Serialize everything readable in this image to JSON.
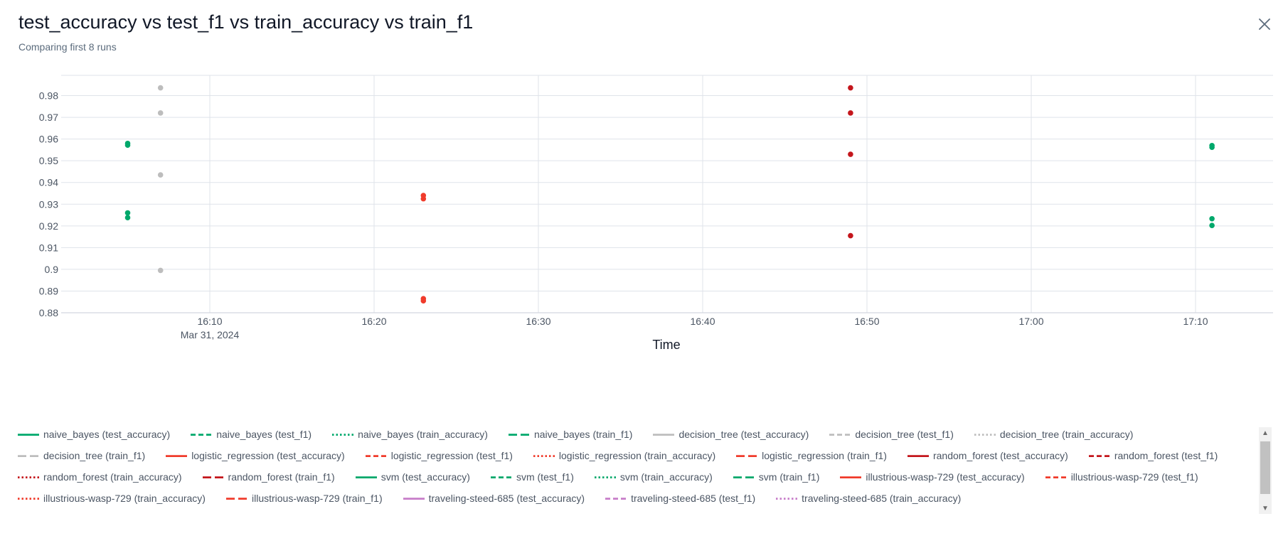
{
  "header": {
    "title": "test_accuracy vs test_f1 vs train_accuracy vs train_f1",
    "subtitle": "Comparing first 8 runs",
    "close_icon": "close-icon"
  },
  "chart_data": {
    "type": "scatter",
    "title": "",
    "xlabel": "Time",
    "ylabel": "",
    "x_date_label": "Mar 31, 2024",
    "x_ticks": [
      "16:10",
      "16:20",
      "16:30",
      "16:40",
      "16:50",
      "17:00",
      "17:10"
    ],
    "x_range": [
      "16:01",
      "17:15"
    ],
    "y_ticks": [
      "0.88",
      "0.89",
      "0.9",
      "0.91",
      "0.92",
      "0.93",
      "0.94",
      "0.95",
      "0.96",
      "0.97",
      "0.98"
    ],
    "ylim": [
      0.88,
      0.99
    ],
    "grid": true,
    "legend_position": "bottom",
    "series": [
      {
        "name": "naive_bayes (test_accuracy)",
        "color": "#00a86b",
        "dash": "solid",
        "points": [
          {
            "x": "16:05",
            "y": 0.926
          }
        ]
      },
      {
        "name": "naive_bayes (test_f1)",
        "color": "#00a86b",
        "dash": "dash",
        "points": [
          {
            "x": "16:05",
            "y": 0.9238
          }
        ]
      },
      {
        "name": "naive_bayes (train_accuracy)",
        "color": "#00a86b",
        "dash": "dot",
        "points": [
          {
            "x": "16:05",
            "y": 0.958
          }
        ]
      },
      {
        "name": "naive_bayes (train_f1)",
        "color": "#00a86b",
        "dash": "longdash",
        "points": [
          {
            "x": "16:05",
            "y": 0.9572
          }
        ]
      },
      {
        "name": "decision_tree (test_accuracy)",
        "color": "#bdbdbd",
        "dash": "solid",
        "points": [
          {
            "x": "16:07",
            "y": 0.9435
          }
        ]
      },
      {
        "name": "decision_tree (test_f1)",
        "color": "#bdbdbd",
        "dash": "dash",
        "points": [
          {
            "x": "16:07",
            "y": 0.8995
          }
        ]
      },
      {
        "name": "decision_tree (train_accuracy)",
        "color": "#bdbdbd",
        "dash": "dot",
        "points": [
          {
            "x": "16:07",
            "y": 0.9836
          }
        ]
      },
      {
        "name": "decision_tree (train_f1)",
        "color": "#bdbdbd",
        "dash": "longdash",
        "points": [
          {
            "x": "16:07",
            "y": 0.972
          }
        ]
      },
      {
        "name": "logistic_regression (test_accuracy)",
        "color": "#f03b2b",
        "dash": "solid",
        "points": [
          {
            "x": "16:23",
            "y": 0.9325
          }
        ]
      },
      {
        "name": "logistic_regression (test_f1)",
        "color": "#f03b2b",
        "dash": "dash",
        "points": [
          {
            "x": "16:23",
            "y": 0.8855
          }
        ]
      },
      {
        "name": "logistic_regression (train_accuracy)",
        "color": "#f03b2b",
        "dash": "dot",
        "points": [
          {
            "x": "16:23",
            "y": 0.934
          }
        ]
      },
      {
        "name": "logistic_regression (train_f1)",
        "color": "#f03b2b",
        "dash": "longdash",
        "points": [
          {
            "x": "16:23",
            "y": 0.8865
          }
        ]
      },
      {
        "name": "random_forest (test_accuracy)",
        "color": "#c4161c",
        "dash": "solid",
        "points": [
          {
            "x": "16:49",
            "y": 0.953
          }
        ]
      },
      {
        "name": "random_forest (test_f1)",
        "color": "#c4161c",
        "dash": "dash",
        "points": [
          {
            "x": "16:49",
            "y": 0.9155
          }
        ]
      },
      {
        "name": "random_forest (train_accuracy)",
        "color": "#c4161c",
        "dash": "dot",
        "points": [
          {
            "x": "16:49",
            "y": 0.9836
          }
        ]
      },
      {
        "name": "random_forest (train_f1)",
        "color": "#c4161c",
        "dash": "longdash",
        "points": [
          {
            "x": "16:49",
            "y": 0.972
          }
        ]
      },
      {
        "name": "svm (test_accuracy)",
        "color": "#00a86b",
        "dash": "solid",
        "points": [
          {
            "x": "17:11",
            "y": 0.9233
          }
        ]
      },
      {
        "name": "svm (test_f1)",
        "color": "#00a86b",
        "dash": "dash",
        "points": [
          {
            "x": "17:11",
            "y": 0.9202
          }
        ]
      },
      {
        "name": "svm (train_accuracy)",
        "color": "#00a86b",
        "dash": "dot",
        "points": [
          {
            "x": "17:11",
            "y": 0.957
          }
        ]
      },
      {
        "name": "svm (train_f1)",
        "color": "#00a86b",
        "dash": "longdash",
        "points": [
          {
            "x": "17:11",
            "y": 0.9562
          }
        ]
      },
      {
        "name": "illustrious-wasp-729 (test_accuracy)",
        "color": "#f03b2b",
        "dash": "solid",
        "points": []
      },
      {
        "name": "illustrious-wasp-729 (test_f1)",
        "color": "#f03b2b",
        "dash": "dash",
        "points": []
      },
      {
        "name": "illustrious-wasp-729 (train_accuracy)",
        "color": "#f03b2b",
        "dash": "dot",
        "points": []
      },
      {
        "name": "illustrious-wasp-729 (train_f1)",
        "color": "#f03b2b",
        "dash": "longdash",
        "points": []
      },
      {
        "name": "traveling-steed-685 (test_accuracy)",
        "color": "#c77dc9",
        "dash": "solid",
        "points": []
      },
      {
        "name": "traveling-steed-685 (test_f1)",
        "color": "#c77dc9",
        "dash": "dash",
        "points": []
      },
      {
        "name": "traveling-steed-685 (train_accuracy)",
        "color": "#c77dc9",
        "dash": "dot",
        "points": []
      }
    ]
  },
  "legend_scrollbar": {
    "up_icon": "scroll-up-icon",
    "down_icon": "scroll-down-icon"
  }
}
